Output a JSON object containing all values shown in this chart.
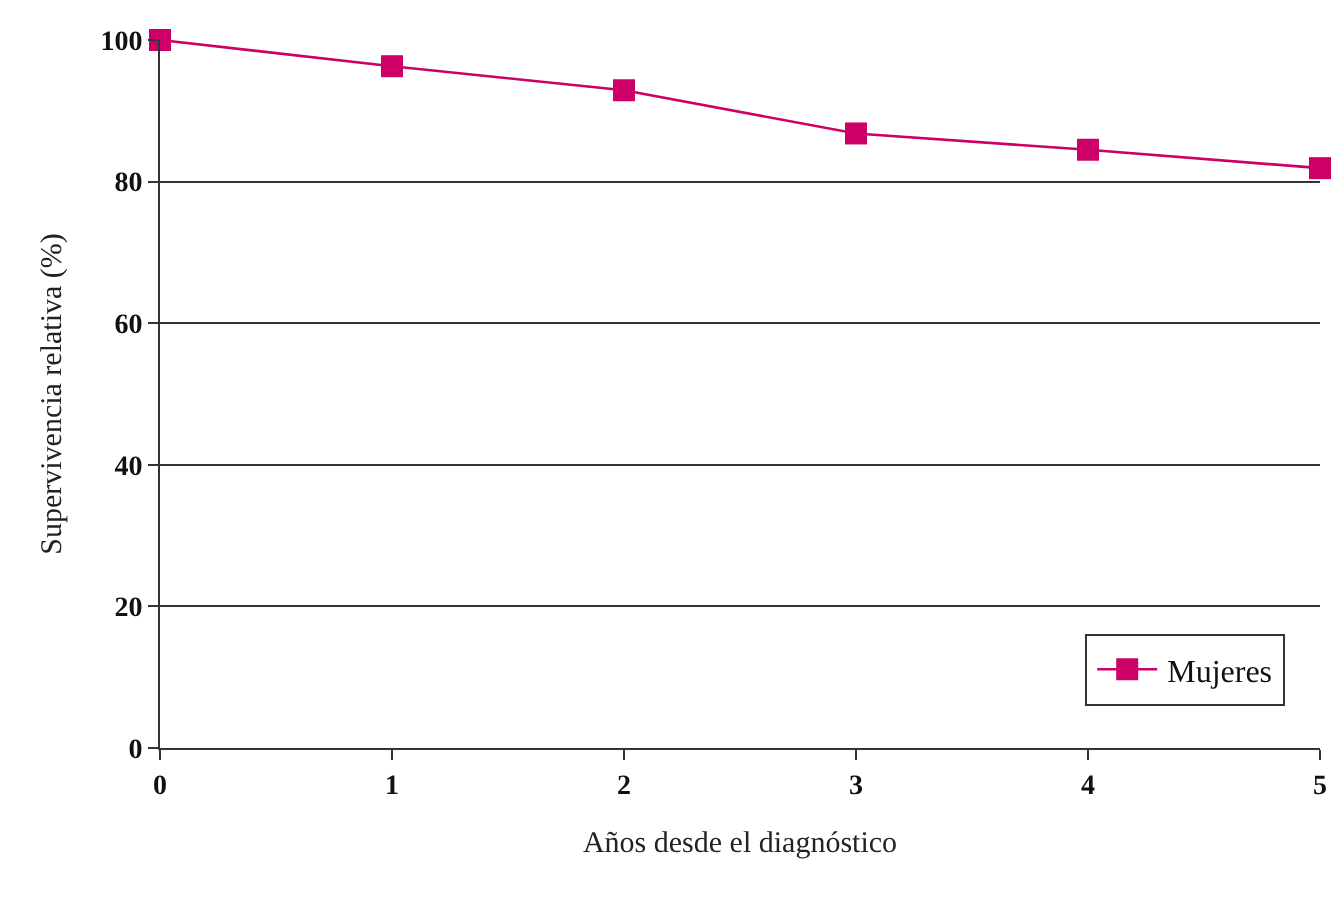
{
  "chart_data": {
    "type": "line",
    "xlabel": "Años desde el diagnóstico",
    "ylabel": "Supervivencia relativa (%)",
    "x": [
      0,
      1,
      2,
      3,
      4,
      5
    ],
    "series": [
      {
        "name": "Mujeres",
        "color": "#cc0066",
        "values": [
          100,
          96.3,
          92.9,
          86.8,
          84.5,
          81.9
        ]
      }
    ],
    "xlim": [
      0,
      5
    ],
    "xticks": [
      0,
      1,
      2,
      3,
      4,
      5
    ],
    "ylim": [
      0,
      100
    ],
    "yticks": [
      0,
      20,
      40,
      60,
      80,
      100
    ],
    "grid": "y",
    "legend": "bottom right",
    "marker": "square",
    "line_style": "solid"
  }
}
